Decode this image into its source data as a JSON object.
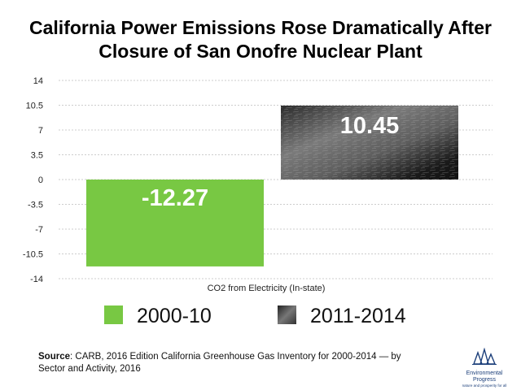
{
  "title_line1": "California Power Emissions Rose Dramatically After",
  "title_line2": "Closure of San Onofre Nuclear Plant",
  "source_label": "Source",
  "source_text": ": CARB, 2016 Edition California Greenhouse Gas Inventory for 2000-2014 — by Sector and Activity, 2016",
  "logo": {
    "name": "Environmental Progress",
    "tagline": "nature and prosperity for all",
    "icon": "tree-logo-icon",
    "color": "#1c3f7a"
  },
  "chart_data": {
    "type": "bar",
    "categories": [
      "CO2 from Electricity (In-state)"
    ],
    "xlabel": "CO2 from Electricity (In-state)",
    "ylabel": "",
    "ylim": [
      -14,
      14
    ],
    "yticks": [
      -14,
      -10.5,
      -7,
      -3.5,
      0,
      3.5,
      7,
      10.5,
      14
    ],
    "ytick_labels": [
      "-14",
      "-10.5",
      "-7",
      "-3.5",
      "0",
      "3.5",
      "7",
      "10.5",
      "14"
    ],
    "grid": true,
    "legend_position": "bottom",
    "series": [
      {
        "name": "2000-10",
        "values": [
          -12.27
        ],
        "label": "-12.27",
        "color": "#78c843"
      },
      {
        "name": "2011-2014",
        "values": [
          10.45
        ],
        "label": "10.45",
        "color": "#4a4a4a",
        "fill": "dark-photo-texture"
      }
    ]
  }
}
